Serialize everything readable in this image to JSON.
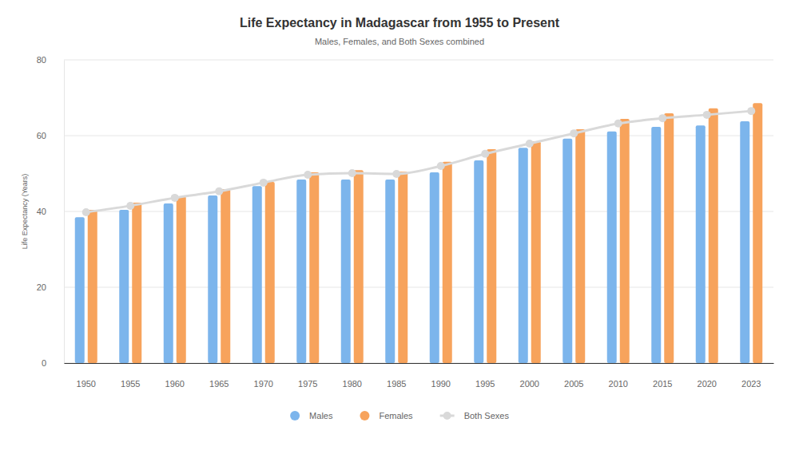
{
  "chart_data": {
    "type": "bar",
    "title": "Life Expectancy in Madagascar from 1955 to Present",
    "subtitle": "Males, Females, and Both Sexes combined",
    "y_label": "Life Expectancy (Years)",
    "categories": [
      "1950",
      "1955",
      "1960",
      "1965",
      "1970",
      "1975",
      "1980",
      "1985",
      "1990",
      "1995",
      "2000",
      "2005",
      "2010",
      "2015",
      "2020",
      "2023"
    ],
    "series": [
      {
        "name": "Males",
        "type": "bar",
        "color": "#7cb5ec",
        "values": [
          38.5,
          40.4,
          42.1,
          44.2,
          46.7,
          48.4,
          48.4,
          48.4,
          50.3,
          53.5,
          56.8,
          59.2,
          61.1,
          62.3,
          62.7,
          63.8
        ]
      },
      {
        "name": "Females",
        "type": "bar",
        "color": "#f7a35c",
        "values": [
          40.4,
          42.3,
          44.0,
          45.9,
          47.8,
          50.3,
          50.9,
          50.5,
          53.1,
          56.4,
          58.5,
          61.7,
          64.4,
          65.9,
          67.2,
          68.6
        ]
      },
      {
        "name": "Both Sexes",
        "type": "line",
        "color": "#d9d9d9",
        "marker": "circle",
        "values": [
          39.8,
          41.5,
          43.6,
          45.3,
          47.6,
          49.7,
          50.1,
          49.9,
          52.0,
          55.2,
          57.9,
          60.6,
          63.2,
          64.6,
          65.5,
          66.5
        ]
      }
    ],
    "ylim": [
      0,
      80
    ],
    "yticks": [
      0,
      20,
      40,
      60,
      80
    ],
    "grid": true,
    "legend": "bottom"
  }
}
